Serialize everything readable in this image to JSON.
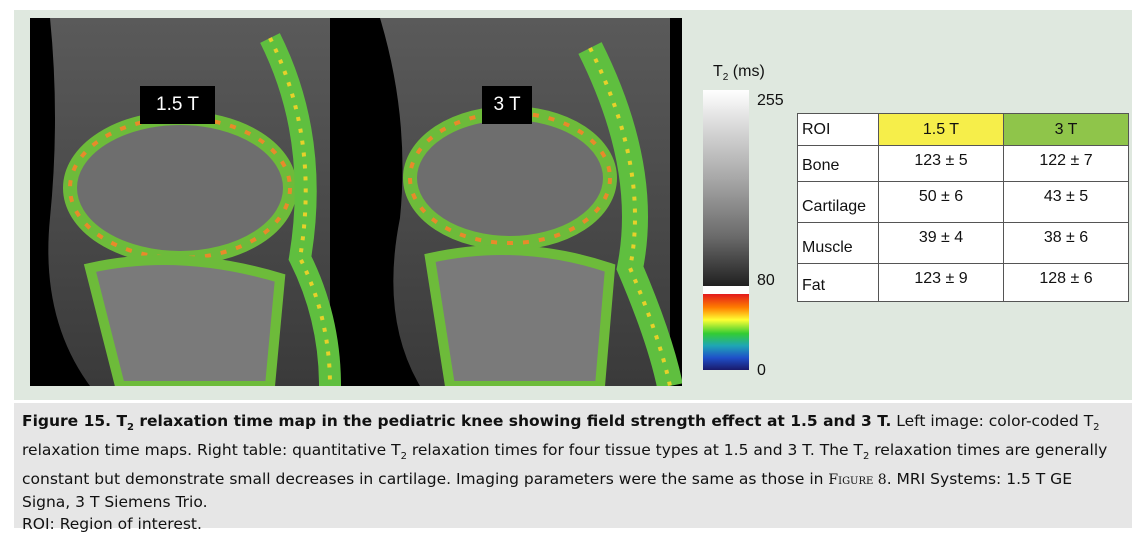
{
  "mri_labels": {
    "left": "1.5 T",
    "right": "3 T"
  },
  "colorbar": {
    "unit_prefix": "T",
    "unit_sub": "2",
    "unit_suffix": " (ms)",
    "tick_top": "255",
    "tick_mid": "80",
    "tick_bottom": "0"
  },
  "table": {
    "headers": [
      "ROI",
      "1.5 T",
      "3 T"
    ],
    "header_colors": {
      "1.5 T": "#f6ee4a",
      "3 T": "#8fc54a"
    },
    "rows": [
      {
        "roi": "Bone",
        "v15": "123 ± 5",
        "v3": "122  ± 7"
      },
      {
        "roi": "Cartilage",
        "v15": "50 ± 6",
        "v3": "43 ± 5"
      },
      {
        "roi": "Muscle",
        "v15": "39 ± 4",
        "v3": "38 ± 6"
      },
      {
        "roi": "Fat",
        "v15": "123 ± 9",
        "v3": "128 ± 6"
      }
    ]
  },
  "caption": {
    "title_a": "Figure 15. T",
    "title_sub": "2",
    "title_b": " relaxation time map in the pediatric knee showing field strength effect at 1.5 and 3 T.",
    "t1": " Left image: color-coded T",
    "s1": "2",
    "t2": " relaxation time maps. Right table: quantitative T",
    "s2": "2",
    "t3": " relaxation times for four tissue types at 1.5 and 3 T. The T",
    "s3": "2",
    "t4": " relaxation times are generally constant but demonstrate small decreases in cartilage. Imaging parameters were the same as those in ",
    "fig_ref": "Figure 8",
    "t5": ". MRI Systems: 1.5 T GE Signa, 3 T Siemens Trio.",
    "abbrev": "ROI: Region of interest."
  }
}
